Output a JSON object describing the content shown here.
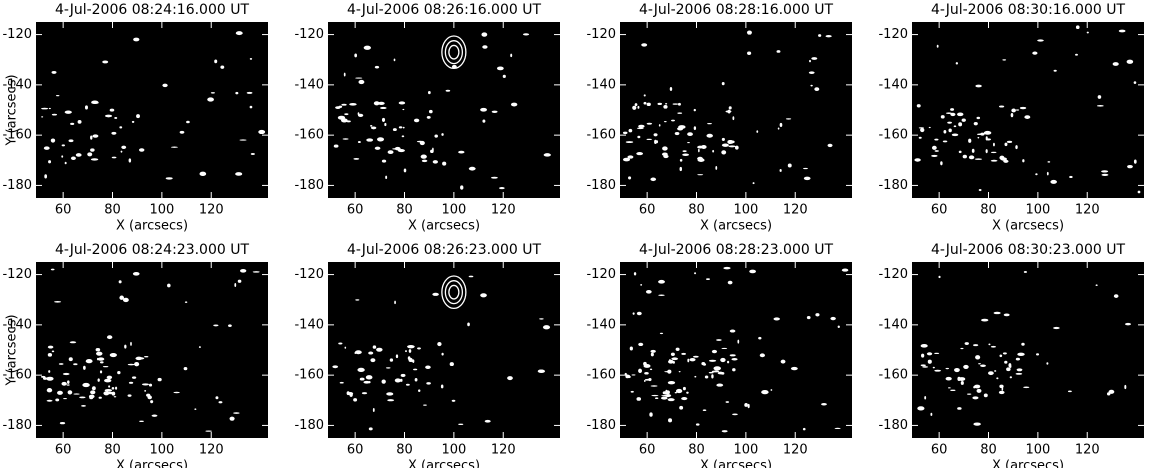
{
  "chart_data": [
    {
      "type": "image",
      "title": "4-Jul-2006 08:24:16.000 UT",
      "xlabel": "X (arcsecs)",
      "ylabel": "Y (arcsecs)",
      "xlim": [
        49,
        143
      ],
      "ylim": [
        -185,
        -115
      ],
      "xticks": [
        60,
        80,
        100,
        120
      ],
      "yticks": [
        -180,
        -160,
        -140,
        -120
      ]
    },
    {
      "type": "image",
      "title": "4-Jul-2006 08:26:16.000 UT",
      "xlabel": "X (arcsecs)",
      "xlim": [
        49,
        143
      ],
      "ylim": [
        -185,
        -115
      ],
      "xticks": [
        60,
        80,
        100,
        120
      ],
      "yticks": [
        -180,
        -160,
        -140,
        -120
      ]
    },
    {
      "type": "image",
      "title": "4-Jul-2006 08:28:16.000 UT",
      "xlabel": "X (arcsecs)",
      "xlim": [
        49,
        143
      ],
      "ylim": [
        -185,
        -115
      ],
      "xticks": [
        60,
        80,
        100,
        120
      ],
      "yticks": [
        -180,
        -160,
        -140,
        -120
      ]
    },
    {
      "type": "image",
      "title": "4-Jul-2006 08:30:16.000 UT",
      "xlabel": "X (arcsecs)",
      "xlim": [
        49,
        143
      ],
      "ylim": [
        -185,
        -115
      ],
      "xticks": [
        60,
        80,
        100,
        120
      ],
      "yticks": [
        -180,
        -160,
        -140,
        -120
      ]
    },
    {
      "type": "image",
      "title": "4-Jul-2006 08:24:23.000 UT",
      "xlabel": "X (arcsecs)",
      "ylabel": "Y (arcsecs)",
      "xlim": [
        49,
        143
      ],
      "ylim": [
        -185,
        -115
      ],
      "xticks": [
        60,
        80,
        100,
        120
      ],
      "yticks": [
        -180,
        -160,
        -140,
        -120
      ]
    },
    {
      "type": "image",
      "title": "4-Jul-2006 08:26:23.000 UT",
      "xlabel": "X (arcsecs)",
      "xlim": [
        49,
        143
      ],
      "ylim": [
        -185,
        -115
      ],
      "xticks": [
        60,
        80,
        100,
        120
      ],
      "yticks": [
        -180,
        -160,
        -140,
        -120
      ]
    },
    {
      "type": "image",
      "title": "4-Jul-2006 08:28:23.000 UT",
      "xlabel": "X (arcsecs)",
      "xlim": [
        49,
        143
      ],
      "ylim": [
        -185,
        -115
      ],
      "xticks": [
        60,
        80,
        100,
        120
      ],
      "yticks": [
        -180,
        -160,
        -140,
        -120
      ]
    },
    {
      "type": "image",
      "title": "4-Jul-2006 08:30:23.000 UT",
      "xlabel": "X (arcsecs)",
      "xlim": [
        49,
        143
      ],
      "ylim": [
        -185,
        -115
      ],
      "xticks": [
        60,
        80,
        100,
        120
      ],
      "yticks": [
        -180,
        -160,
        -140,
        -120
      ]
    }
  ]
}
